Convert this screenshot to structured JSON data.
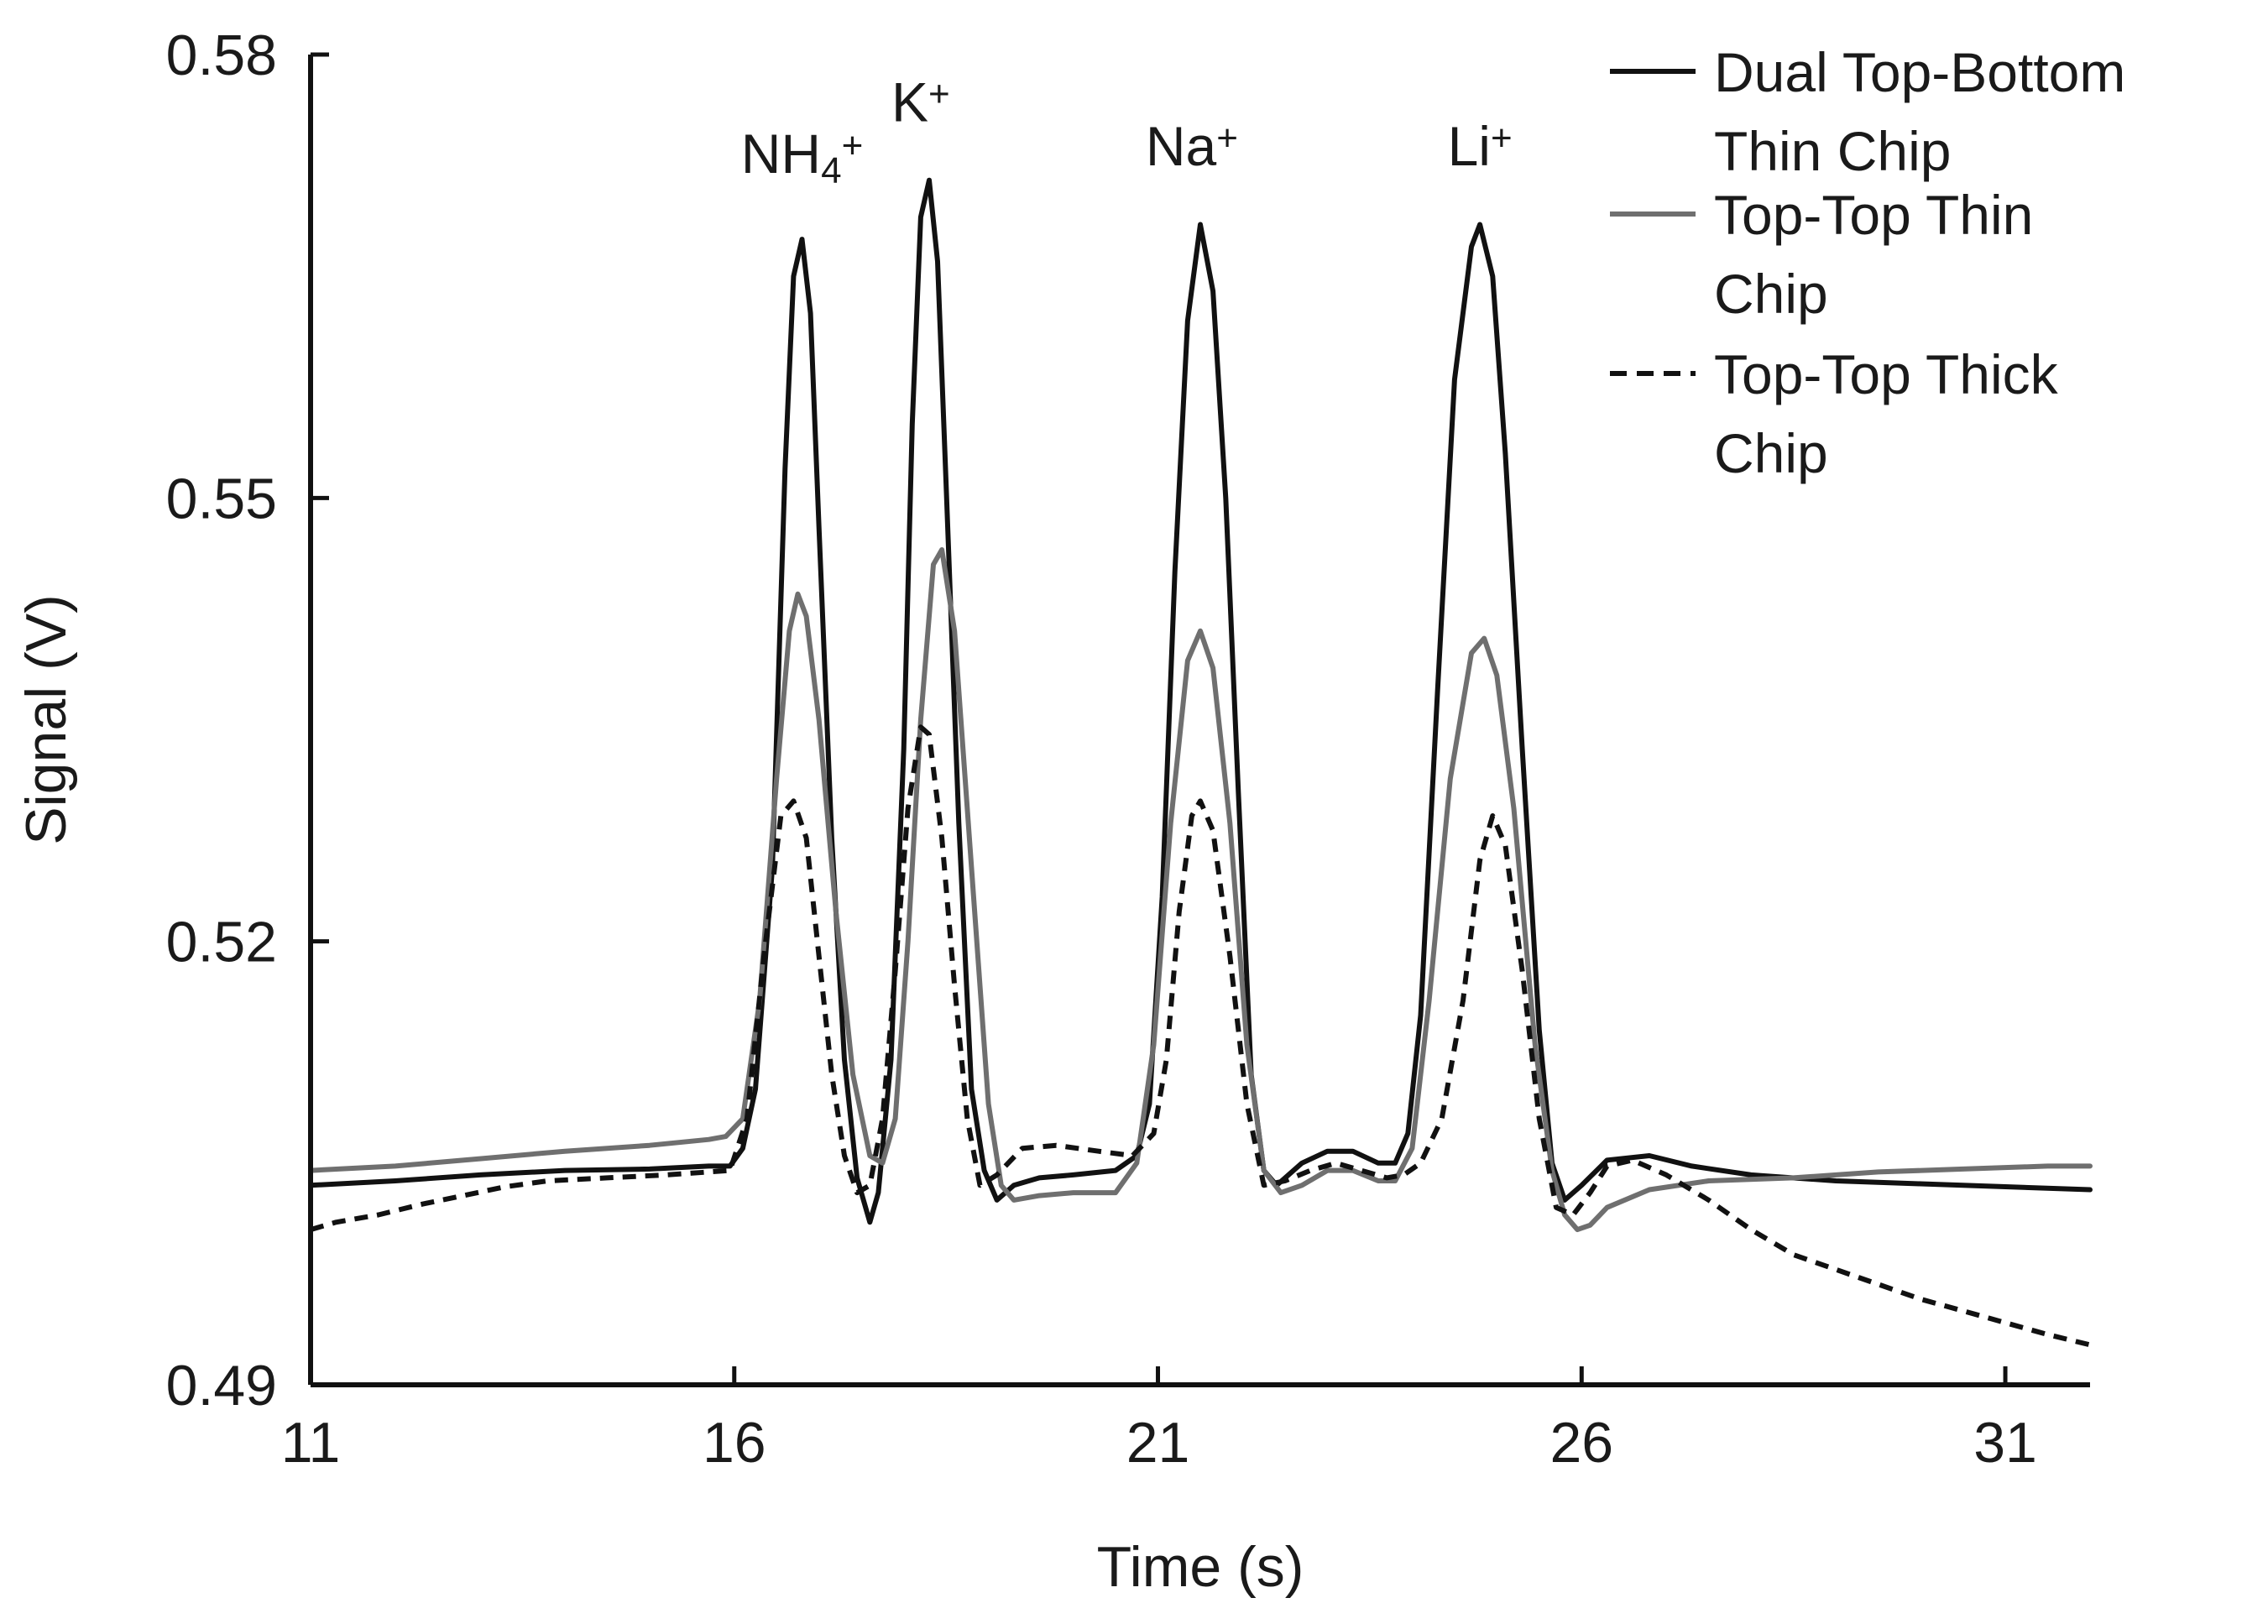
{
  "chart_data": {
    "type": "line",
    "xlabel": "Time (s)",
    "ylabel": "Signal (V)",
    "xlim": [
      11,
      32
    ],
    "ylim": [
      0.49,
      0.58
    ],
    "x_ticks": [
      "11",
      "16",
      "21",
      "26",
      "31"
    ],
    "y_ticks": [
      "0.49",
      "0.52",
      "0.55",
      "0.58"
    ],
    "grid": false,
    "legend_position": "top-right",
    "peak_labels": [
      {
        "base": "NH",
        "sub": "4",
        "sup": "+",
        "x": 16.8,
        "y": 0.572
      },
      {
        "base": "K",
        "sub": "",
        "sup": "+",
        "x": 18.2,
        "y": 0.5755
      },
      {
        "base": "Na",
        "sub": "",
        "sup": "+",
        "x": 21.4,
        "y": 0.5725
      },
      {
        "base": "Li",
        "sub": "",
        "sup": "+",
        "x": 24.8,
        "y": 0.5725
      }
    ],
    "series": [
      {
        "name": "Dual Top-Bottom Thin Chip",
        "legend_lines": [
          "Dual Top-Bottom",
          "Thin Chip"
        ],
        "color": "#111111",
        "dash": "solid",
        "points": [
          [
            11.0,
            0.5035
          ],
          [
            12.0,
            0.5038
          ],
          [
            13.0,
            0.5042
          ],
          [
            14.0,
            0.5045
          ],
          [
            15.0,
            0.5046
          ],
          [
            15.7,
            0.5048
          ],
          [
            15.95,
            0.5048
          ],
          [
            16.1,
            0.506
          ],
          [
            16.25,
            0.51
          ],
          [
            16.45,
            0.525
          ],
          [
            16.6,
            0.552
          ],
          [
            16.7,
            0.565
          ],
          [
            16.8,
            0.5675
          ],
          [
            16.9,
            0.5625
          ],
          [
            17.0,
            0.548
          ],
          [
            17.15,
            0.527
          ],
          [
            17.3,
            0.512
          ],
          [
            17.45,
            0.504
          ],
          [
            17.6,
            0.501
          ],
          [
            17.7,
            0.503
          ],
          [
            17.85,
            0.512
          ],
          [
            18.0,
            0.533
          ],
          [
            18.1,
            0.555
          ],
          [
            18.2,
            0.569
          ],
          [
            18.3,
            0.5715
          ],
          [
            18.4,
            0.566
          ],
          [
            18.5,
            0.551
          ],
          [
            18.65,
            0.528
          ],
          [
            18.8,
            0.51
          ],
          [
            18.95,
            0.5045
          ],
          [
            19.1,
            0.5025
          ],
          [
            19.3,
            0.5035
          ],
          [
            19.6,
            0.504
          ],
          [
            20.0,
            0.5042
          ],
          [
            20.5,
            0.5045
          ],
          [
            20.75,
            0.5055
          ],
          [
            20.9,
            0.509
          ],
          [
            21.05,
            0.523
          ],
          [
            21.2,
            0.545
          ],
          [
            21.35,
            0.562
          ],
          [
            21.5,
            0.5685
          ],
          [
            21.65,
            0.564
          ],
          [
            21.8,
            0.55
          ],
          [
            21.95,
            0.53
          ],
          [
            22.1,
            0.511
          ],
          [
            22.25,
            0.5045
          ],
          [
            22.4,
            0.5035
          ],
          [
            22.7,
            0.505
          ],
          [
            23.0,
            0.5058
          ],
          [
            23.3,
            0.5058
          ],
          [
            23.6,
            0.505
          ],
          [
            23.8,
            0.505
          ],
          [
            23.95,
            0.507
          ],
          [
            24.1,
            0.515
          ],
          [
            24.3,
            0.537
          ],
          [
            24.5,
            0.558
          ],
          [
            24.7,
            0.567
          ],
          [
            24.8,
            0.5685
          ],
          [
            24.95,
            0.565
          ],
          [
            25.1,
            0.553
          ],
          [
            25.3,
            0.533
          ],
          [
            25.5,
            0.514
          ],
          [
            25.65,
            0.505
          ],
          [
            25.8,
            0.5025
          ],
          [
            26.0,
            0.5035
          ],
          [
            26.3,
            0.5052
          ],
          [
            26.8,
            0.5055
          ],
          [
            27.3,
            0.5048
          ],
          [
            28.0,
            0.5042
          ],
          [
            29.0,
            0.5038
          ],
          [
            30.0,
            0.5036
          ],
          [
            31.0,
            0.5034
          ],
          [
            32.0,
            0.5032
          ]
        ]
      },
      {
        "name": "Top-Top Thin Chip",
        "legend_lines": [
          "Top-Top Thin",
          "Chip"
        ],
        "color": "#6f6f6f",
        "dash": "solid",
        "points": [
          [
            11.0,
            0.5045
          ],
          [
            12.0,
            0.5048
          ],
          [
            13.0,
            0.5053
          ],
          [
            14.0,
            0.5058
          ],
          [
            15.0,
            0.5062
          ],
          [
            15.7,
            0.5066
          ],
          [
            15.9,
            0.5068
          ],
          [
            16.1,
            0.508
          ],
          [
            16.3,
            0.516
          ],
          [
            16.5,
            0.531
          ],
          [
            16.65,
            0.541
          ],
          [
            16.75,
            0.5435
          ],
          [
            16.85,
            0.542
          ],
          [
            17.0,
            0.535
          ],
          [
            17.2,
            0.522
          ],
          [
            17.4,
            0.511
          ],
          [
            17.6,
            0.5055
          ],
          [
            17.75,
            0.505
          ],
          [
            17.9,
            0.508
          ],
          [
            18.05,
            0.52
          ],
          [
            18.2,
            0.535
          ],
          [
            18.35,
            0.5455
          ],
          [
            18.45,
            0.5465
          ],
          [
            18.6,
            0.541
          ],
          [
            18.8,
            0.525
          ],
          [
            19.0,
            0.509
          ],
          [
            19.15,
            0.5035
          ],
          [
            19.3,
            0.5025
          ],
          [
            19.6,
            0.5028
          ],
          [
            20.0,
            0.503
          ],
          [
            20.5,
            0.503
          ],
          [
            20.75,
            0.505
          ],
          [
            20.95,
            0.513
          ],
          [
            21.15,
            0.528
          ],
          [
            21.35,
            0.539
          ],
          [
            21.5,
            0.541
          ],
          [
            21.65,
            0.5385
          ],
          [
            21.85,
            0.528
          ],
          [
            22.05,
            0.513
          ],
          [
            22.25,
            0.5045
          ],
          [
            22.45,
            0.503
          ],
          [
            22.7,
            0.5035
          ],
          [
            23.0,
            0.5045
          ],
          [
            23.3,
            0.5045
          ],
          [
            23.6,
            0.5038
          ],
          [
            23.8,
            0.5038
          ],
          [
            24.0,
            0.506
          ],
          [
            24.2,
            0.516
          ],
          [
            24.45,
            0.531
          ],
          [
            24.7,
            0.5395
          ],
          [
            24.85,
            0.5405
          ],
          [
            25.0,
            0.538
          ],
          [
            25.2,
            0.529
          ],
          [
            25.45,
            0.513
          ],
          [
            25.65,
            0.5045
          ],
          [
            25.8,
            0.5015
          ],
          [
            25.95,
            0.5005
          ],
          [
            26.1,
            0.5008
          ],
          [
            26.3,
            0.502
          ],
          [
            26.8,
            0.5032
          ],
          [
            27.5,
            0.5038
          ],
          [
            28.5,
            0.504
          ],
          [
            29.5,
            0.5044
          ],
          [
            30.5,
            0.5046
          ],
          [
            31.5,
            0.5048
          ],
          [
            32.0,
            0.5048
          ]
        ]
      },
      {
        "name": "Top-Top Thick Chip",
        "legend_lines": [
          "Top-Top Thick",
          "Chip"
        ],
        "color": "#111111",
        "dash": "dashed",
        "points": [
          [
            11.0,
            0.5005
          ],
          [
            11.3,
            0.501
          ],
          [
            11.8,
            0.5015
          ],
          [
            12.3,
            0.5022
          ],
          [
            12.8,
            0.5028
          ],
          [
            13.3,
            0.5034
          ],
          [
            13.8,
            0.5038
          ],
          [
            14.5,
            0.504
          ],
          [
            15.2,
            0.5042
          ],
          [
            15.7,
            0.5044
          ],
          [
            15.95,
            0.5045
          ],
          [
            16.15,
            0.508
          ],
          [
            16.35,
            0.519
          ],
          [
            16.55,
            0.5285
          ],
          [
            16.7,
            0.5295
          ],
          [
            16.85,
            0.527
          ],
          [
            17.0,
            0.519
          ],
          [
            17.15,
            0.511
          ],
          [
            17.3,
            0.5055
          ],
          [
            17.45,
            0.503
          ],
          [
            17.6,
            0.5035
          ],
          [
            17.75,
            0.508
          ],
          [
            17.9,
            0.518
          ],
          [
            18.05,
            0.529
          ],
          [
            18.2,
            0.5345
          ],
          [
            18.3,
            0.534
          ],
          [
            18.45,
            0.527
          ],
          [
            18.6,
            0.517
          ],
          [
            18.75,
            0.508
          ],
          [
            18.9,
            0.5035
          ],
          [
            19.1,
            0.5042
          ],
          [
            19.4,
            0.506
          ],
          [
            19.8,
            0.5062
          ],
          [
            20.3,
            0.5058
          ],
          [
            20.7,
            0.5055
          ],
          [
            20.95,
            0.507
          ],
          [
            21.1,
            0.512
          ],
          [
            21.25,
            0.522
          ],
          [
            21.4,
            0.5285
          ],
          [
            21.5,
            0.5295
          ],
          [
            21.65,
            0.5275
          ],
          [
            21.85,
            0.519
          ],
          [
            22.05,
            0.509
          ],
          [
            22.25,
            0.5035
          ],
          [
            22.5,
            0.5038
          ],
          [
            22.8,
            0.5045
          ],
          [
            23.1,
            0.505
          ],
          [
            23.4,
            0.5045
          ],
          [
            23.7,
            0.504
          ],
          [
            23.9,
            0.5042
          ],
          [
            24.1,
            0.505
          ],
          [
            24.35,
            0.508
          ],
          [
            24.6,
            0.516
          ],
          [
            24.8,
            0.5255
          ],
          [
            24.95,
            0.5285
          ],
          [
            25.1,
            0.5265
          ],
          [
            25.3,
            0.518
          ],
          [
            25.5,
            0.508
          ],
          [
            25.7,
            0.502
          ],
          [
            25.9,
            0.5015
          ],
          [
            26.1,
            0.503
          ],
          [
            26.3,
            0.5048
          ],
          [
            26.6,
            0.5052
          ],
          [
            27.0,
            0.5042
          ],
          [
            27.5,
            0.5025
          ],
          [
            28.0,
            0.5005
          ],
          [
            28.5,
            0.4988
          ],
          [
            29.0,
            0.4978
          ],
          [
            29.5,
            0.4968
          ],
          [
            30.0,
            0.4958
          ],
          [
            30.5,
            0.495
          ],
          [
            31.0,
            0.4942
          ],
          [
            31.5,
            0.4934
          ],
          [
            32.0,
            0.4927
          ]
        ]
      }
    ]
  }
}
